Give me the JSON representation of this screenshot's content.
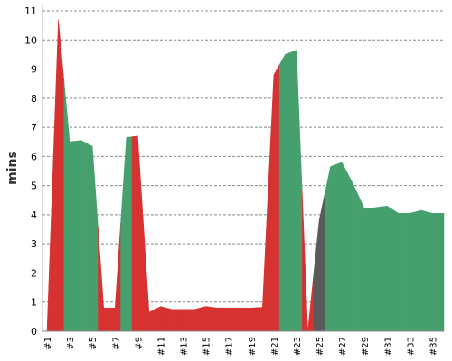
{
  "chart_data": {
    "type": "area",
    "y_label": "mins",
    "categories": [
      "#1",
      null,
      "#3",
      null,
      "#5",
      null,
      "#7",
      null,
      "#9",
      null,
      "#11",
      null,
      "#13",
      null,
      "#15",
      null,
      "#17",
      null,
      "#19",
      null,
      "#21",
      null,
      "#23",
      null,
      "#25",
      null,
      "#27",
      null,
      "#29",
      null,
      "#31",
      null,
      "#33",
      null,
      "#35",
      null
    ],
    "values": [
      0,
      10.7,
      6.5,
      6.55,
      6.35,
      0.8,
      0.8,
      6.65,
      6.7,
      0.65,
      0.85,
      0.75,
      0.75,
      0.75,
      0.85,
      0.8,
      0.8,
      0.8,
      0.8,
      0.82,
      8.8,
      9.5,
      9.65,
      0,
      3.8,
      5.65,
      5.8,
      5.05,
      4.2,
      4.25,
      4.3,
      4.05,
      4.05,
      4.15,
      4.05,
      4.05
    ],
    "point_colors": [
      "#d63232",
      "#d63232",
      "#46a06e",
      "#46a06e",
      "#46a06e",
      "#d63232",
      "#d63232",
      "#46a06e",
      "#d63232",
      "#d63232",
      "#d63232",
      "#d63232",
      "#d63232",
      "#d63232",
      "#d63232",
      "#d63232",
      "#d63232",
      "#d63232",
      "#d63232",
      "#d63232",
      "#d63232",
      "#46a06e",
      "#46a06e",
      "#d63232",
      "#5a5a5a",
      "#46a06e",
      "#46a06e",
      "#46a06e",
      "#46a06e",
      "#46a06e",
      "#46a06e",
      "#46a06e",
      "#46a06e",
      "#46a06e",
      "#46a06e",
      "#46a06e"
    ],
    "ylim": [
      0,
      11
    ],
    "yticks": [
      0,
      1,
      2,
      3,
      4,
      5,
      6,
      7,
      8,
      9,
      10,
      11
    ],
    "grid": true
  }
}
